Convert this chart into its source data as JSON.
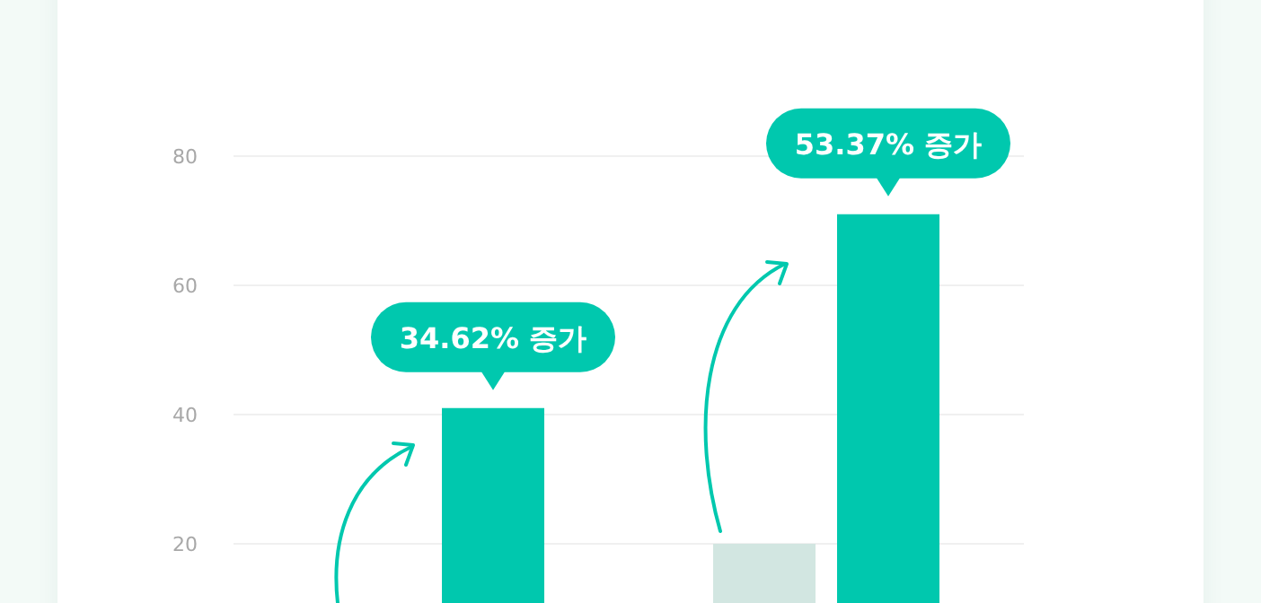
{
  "chart_data": {
    "type": "bar",
    "categories": [
      null,
      null
    ],
    "series": [
      {
        "color": "#d2e6e1",
        "values": [
          null,
          20
        ]
      },
      {
        "color": "#00c8ae",
        "values": [
          41,
          71
        ]
      }
    ],
    "annotations": [
      "34.62% 증가",
      "53.37% 증가"
    ],
    "ylim": [
      0,
      80
    ],
    "yticks": [
      20,
      40,
      60,
      80
    ],
    "grid": "y",
    "legend": false
  }
}
